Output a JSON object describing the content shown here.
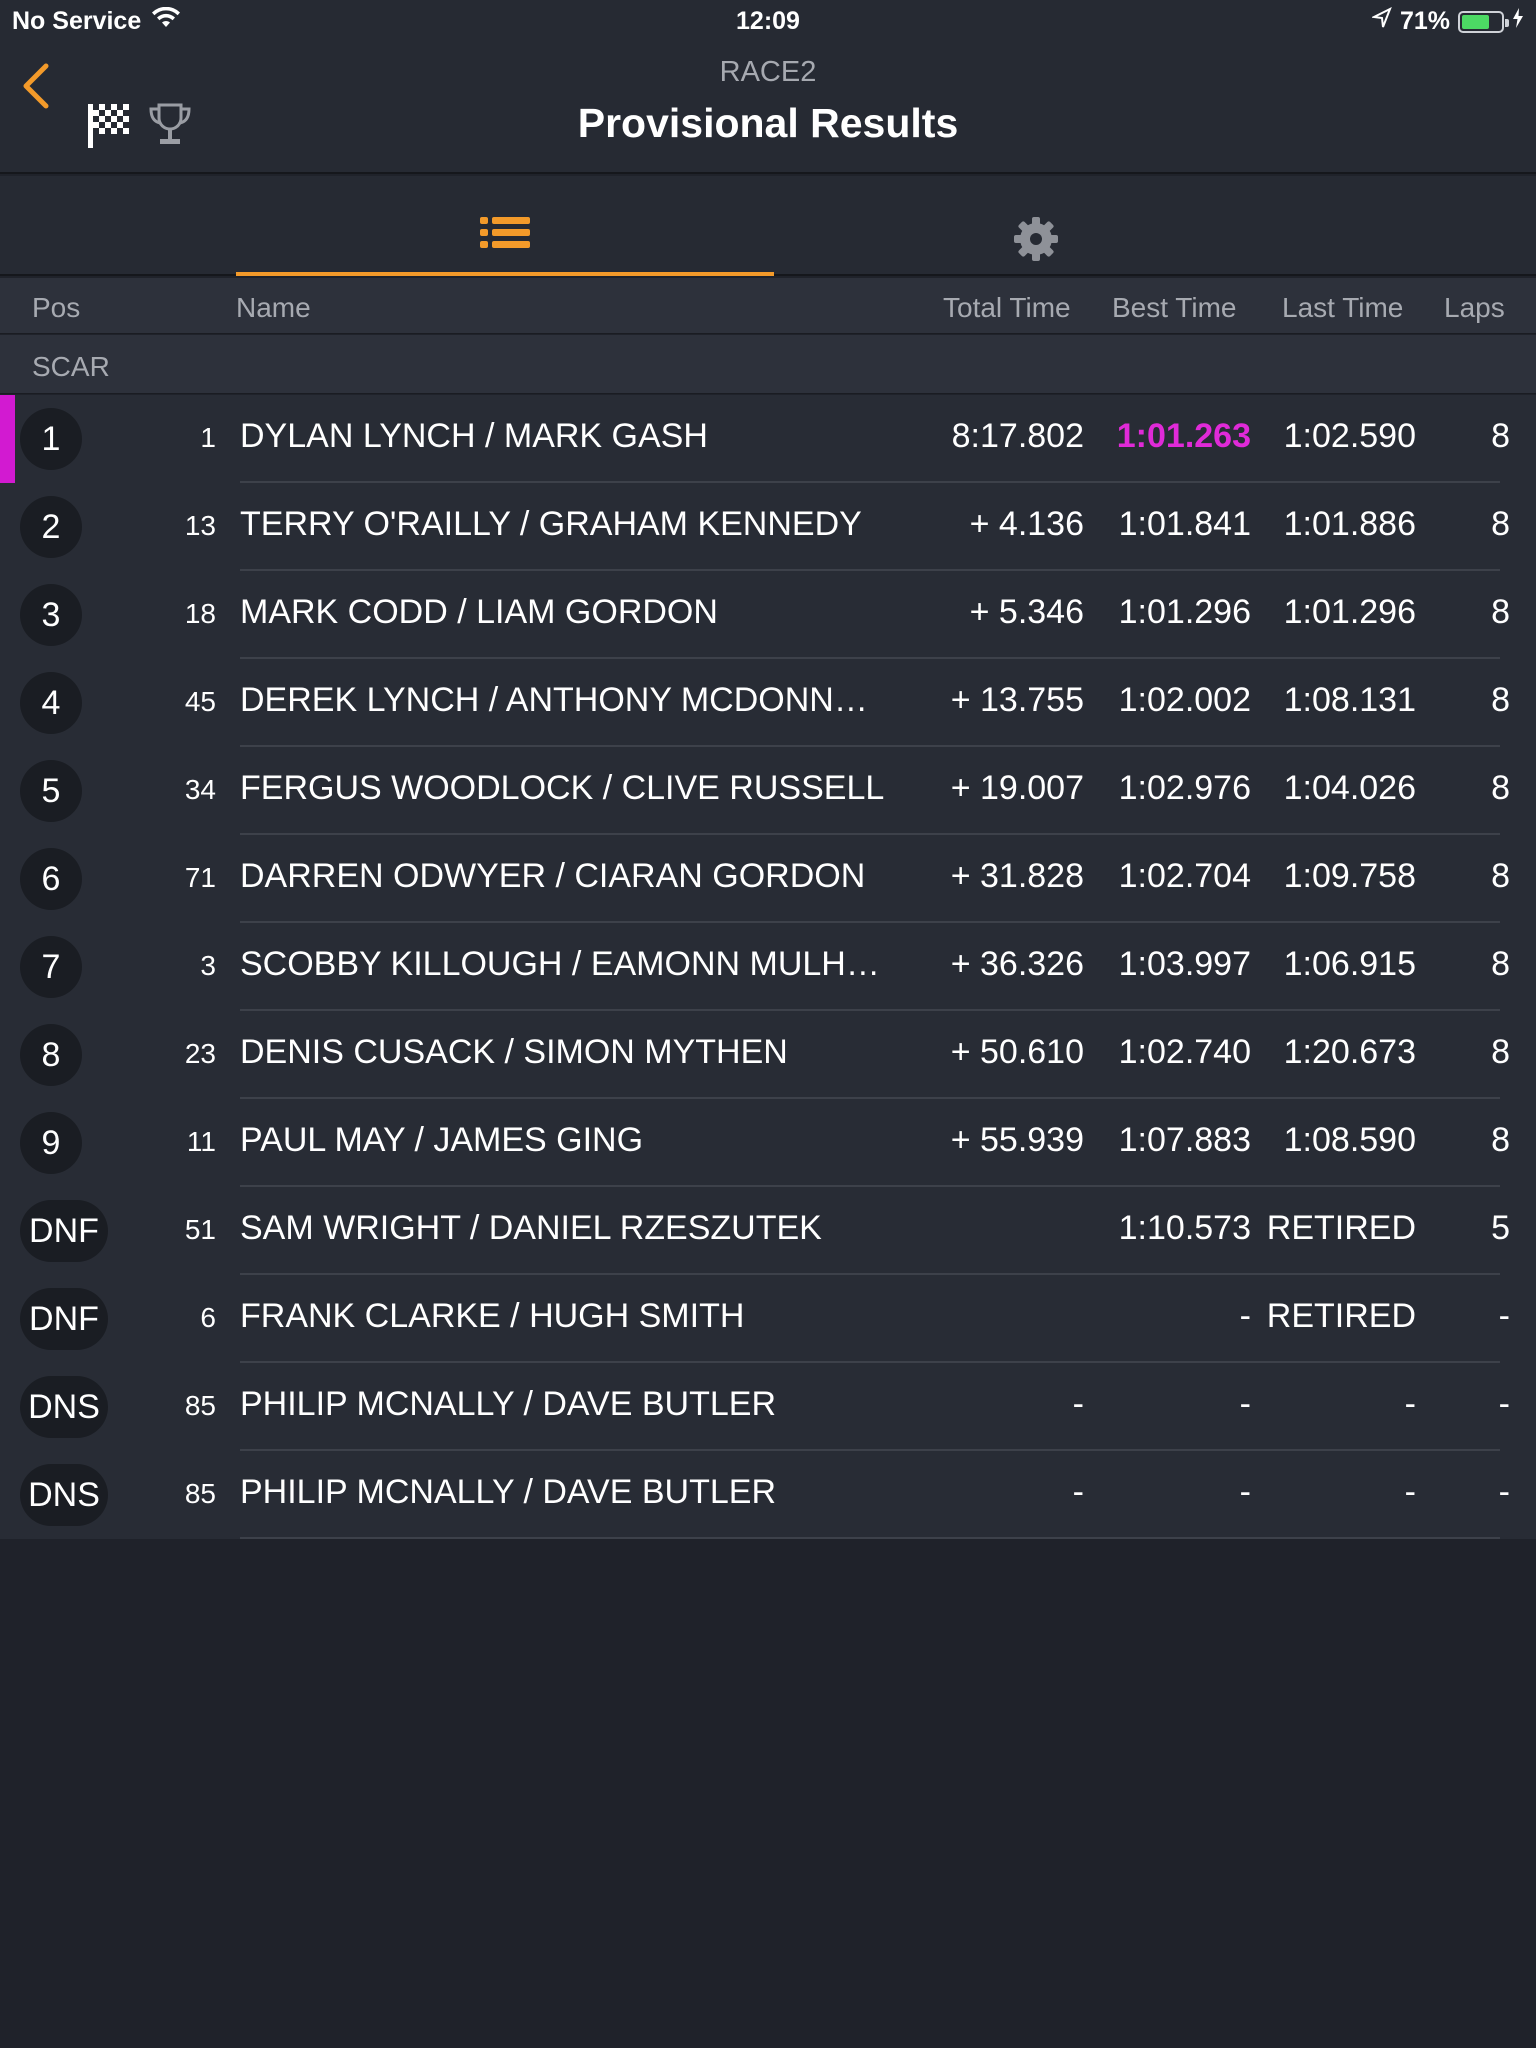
{
  "status_bar": {
    "carrier": "No Service",
    "time": "12:09",
    "battery_percent": "71%",
    "battery_level": 0.71
  },
  "header": {
    "race_name": "RACE2",
    "title": "Provisional Results"
  },
  "tabs": [
    {
      "name": "results-list",
      "icon": "list-icon",
      "active": true
    },
    {
      "name": "settings",
      "icon": "gear-icon",
      "active": false
    }
  ],
  "columns": {
    "pos": "Pos",
    "name": "Name",
    "total": "Total Time",
    "best": "Best Time",
    "last": "Last Time",
    "laps": "Laps"
  },
  "group_label": "SCAR",
  "colors": {
    "accent": "#f39a2a",
    "fastest_lap": "#e02ad8"
  },
  "rows": [
    {
      "pos": "1",
      "num": "1",
      "name": "DYLAN LYNCH / MARK GASH",
      "total": "8:17.802",
      "best": "1:01.263",
      "last": "1:02.590",
      "laps": "8",
      "fastest": true,
      "leader": true
    },
    {
      "pos": "2",
      "num": "13",
      "name": "TERRY O'RAILLY / GRAHAM KENNEDY",
      "total": "+ 4.136",
      "best": "1:01.841",
      "last": "1:01.886",
      "laps": "8"
    },
    {
      "pos": "3",
      "num": "18",
      "name": "MARK CODD / LIAM GORDON",
      "total": "+ 5.346",
      "best": "1:01.296",
      "last": "1:01.296",
      "laps": "8"
    },
    {
      "pos": "4",
      "num": "45",
      "name": "DEREK LYNCH / ANTHONY MCDONN…",
      "total": "+ 13.755",
      "best": "1:02.002",
      "last": "1:08.131",
      "laps": "8"
    },
    {
      "pos": "5",
      "num": "34",
      "name": "FERGUS WOODLOCK / CLIVE RUSSELL",
      "total": "+ 19.007",
      "best": "1:02.976",
      "last": "1:04.026",
      "laps": "8"
    },
    {
      "pos": "6",
      "num": "71",
      "name": "DARREN ODWYER / CIARAN GORDON",
      "total": "+ 31.828",
      "best": "1:02.704",
      "last": "1:09.758",
      "laps": "8"
    },
    {
      "pos": "7",
      "num": "3",
      "name": "SCOBBY KILLOUGH / EAMONN MULH…",
      "total": "+ 36.326",
      "best": "1:03.997",
      "last": "1:06.915",
      "laps": "8"
    },
    {
      "pos": "8",
      "num": "23",
      "name": "DENIS CUSACK / SIMON MYTHEN",
      "total": "+ 50.610",
      "best": "1:02.740",
      "last": "1:20.673",
      "laps": "8"
    },
    {
      "pos": "9",
      "num": "11",
      "name": "PAUL MAY / JAMES GING",
      "total": "+ 55.939",
      "best": "1:07.883",
      "last": "1:08.590",
      "laps": "8"
    },
    {
      "pos": "DNF",
      "num": "51",
      "name": "SAM WRIGHT / DANIEL RZESZUTEK",
      "total": "",
      "best": "1:10.573",
      "last": "RETIRED",
      "laps": "5"
    },
    {
      "pos": "DNF",
      "num": "6",
      "name": "FRANK CLARKE / HUGH SMITH",
      "total": "",
      "best": "-",
      "last": "RETIRED",
      "laps": "-"
    },
    {
      "pos": "DNS",
      "num": "85",
      "name": "PHILIP MCNALLY / DAVE BUTLER",
      "total": "-",
      "best": "-",
      "last": "-",
      "laps": "-"
    },
    {
      "pos": "DNS",
      "num": "85",
      "name": "PHILIP MCNALLY / DAVE BUTLER",
      "total": "-",
      "best": "-",
      "last": "-",
      "laps": "-"
    }
  ]
}
